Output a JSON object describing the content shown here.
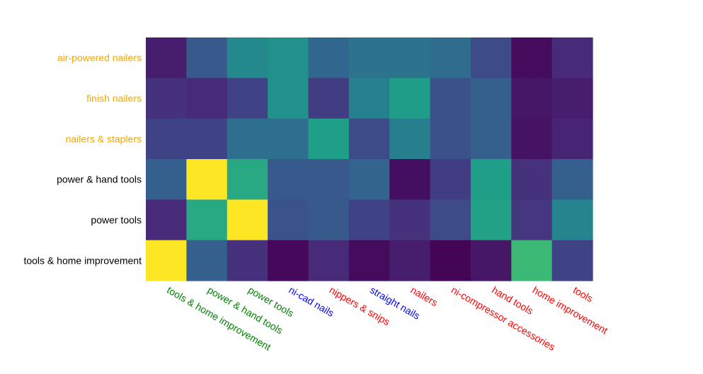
{
  "chart_data": {
    "type": "heatmap",
    "title": "",
    "xlabel": "",
    "ylabel": "",
    "x": [
      "tools & home improvement",
      "power & hand tools",
      "power tools",
      "ni-cad nails",
      "nippers & snips",
      "straight nails",
      "nailers",
      "ni-compressor accessories",
      "hand tools",
      "home improvement",
      "tools"
    ],
    "y": [
      "air-powered nailers",
      "finish nailers",
      "nailers & staplers",
      "power & hand tools",
      "power tools",
      "tools & home improvement"
    ],
    "z": [
      [
        0.08,
        0.28,
        0.47,
        0.5,
        0.33,
        0.38,
        0.38,
        0.35,
        0.23,
        0.03,
        0.12
      ],
      [
        0.14,
        0.12,
        0.2,
        0.5,
        0.18,
        0.44,
        0.55,
        0.25,
        0.3,
        0.06,
        0.08
      ],
      [
        0.2,
        0.2,
        0.36,
        0.36,
        0.56,
        0.23,
        0.43,
        0.25,
        0.3,
        0.05,
        0.1
      ],
      [
        0.3,
        1.0,
        0.6,
        0.28,
        0.28,
        0.32,
        0.04,
        0.18,
        0.56,
        0.14,
        0.3
      ],
      [
        0.12,
        0.6,
        1.0,
        0.26,
        0.28,
        0.2,
        0.14,
        0.23,
        0.57,
        0.16,
        0.45
      ],
      [
        1.0,
        0.3,
        0.14,
        0.02,
        0.12,
        0.03,
        0.08,
        0.01,
        0.06,
        0.68,
        0.2
      ]
    ],
    "colorscale": "viridis",
    "colorbar": false,
    "ytick_colors": [
      "#f4a700",
      "#f4a700",
      "#f4a700",
      "#000000",
      "#000000",
      "#000000"
    ],
    "xtick_colors": [
      "#008000",
      "#008000",
      "#008000",
      "#0000ff",
      "#ff0000",
      "#0000ff",
      "#ff0000",
      "#ff0000",
      "#ff0000",
      "#ff0000",
      "#ff0000"
    ]
  }
}
